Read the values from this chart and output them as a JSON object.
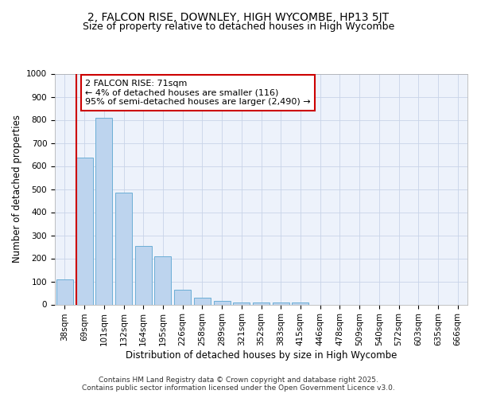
{
  "title1": "2, FALCON RISE, DOWNLEY, HIGH WYCOMBE, HP13 5JT",
  "title2": "Size of property relative to detached houses in High Wycombe",
  "xlabel": "Distribution of detached houses by size in High Wycombe",
  "ylabel": "Number of detached properties",
  "bar_labels": [
    "38sqm",
    "69sqm",
    "101sqm",
    "132sqm",
    "164sqm",
    "195sqm",
    "226sqm",
    "258sqm",
    "289sqm",
    "321sqm",
    "352sqm",
    "383sqm",
    "415sqm",
    "446sqm",
    "478sqm",
    "509sqm",
    "540sqm",
    "572sqm",
    "603sqm",
    "635sqm",
    "666sqm"
  ],
  "bar_values": [
    110,
    635,
    810,
    485,
    255,
    210,
    63,
    30,
    15,
    10,
    8,
    7,
    7,
    0,
    0,
    0,
    0,
    0,
    0,
    0,
    0
  ],
  "bar_color": "#bdd4ee",
  "bar_edge_color": "#6baed6",
  "vline_color": "#cc0000",
  "ylim": [
    0,
    1000
  ],
  "yticks": [
    0,
    100,
    200,
    300,
    400,
    500,
    600,
    700,
    800,
    900,
    1000
  ],
  "annotation_text": "2 FALCON RISE: 71sqm\n← 4% of detached houses are smaller (116)\n95% of semi-detached houses are larger (2,490) →",
  "annotation_box_color": "#ffffff",
  "annotation_box_edge": "#cc0000",
  "background_color": "#edf2fb",
  "grid_color": "#c8d4e8",
  "footer_text": "Contains HM Land Registry data © Crown copyright and database right 2025.\nContains public sector information licensed under the Open Government Licence v3.0.",
  "title_fontsize": 10,
  "subtitle_fontsize": 9,
  "axis_label_fontsize": 8.5,
  "tick_fontsize": 7.5,
  "annotation_fontsize": 8,
  "footer_fontsize": 6.5
}
